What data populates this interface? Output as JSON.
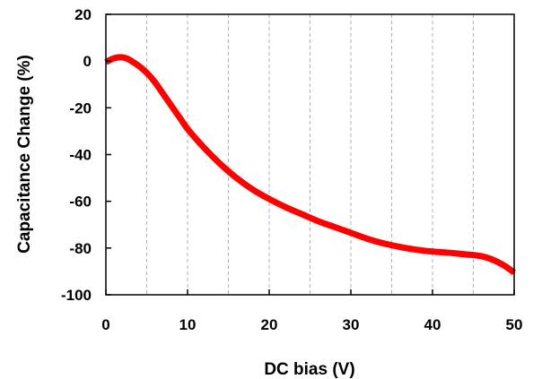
{
  "chart_data": {
    "type": "line",
    "xlabel": "DC bias (V)",
    "ylabel": "Capacitance Change (%)",
    "xlim": [
      0,
      50
    ],
    "ylim": [
      -100,
      20
    ],
    "x_ticks": [
      0,
      10,
      20,
      30,
      40,
      50
    ],
    "y_ticks": [
      20,
      0,
      -20,
      -40,
      -60,
      -80,
      -100
    ],
    "x_ticks_labels": [
      "0",
      "10",
      "20",
      "30",
      "40",
      "50"
    ],
    "y_ticks_labels": [
      "20",
      "0",
      "-20",
      "-40",
      "-60",
      "-80",
      "-100"
    ],
    "grid": "vertical dashed gridlines every 5 V",
    "series": [
      {
        "color": "#ff0000",
        "x": [
          0,
          0.5,
          1,
          1.5,
          2,
          2.5,
          3,
          4,
          5,
          6,
          7,
          8,
          9,
          10,
          12,
          14,
          16,
          18,
          20,
          22,
          24,
          26,
          28,
          30,
          32,
          34,
          36,
          38,
          40,
          42,
          44,
          45,
          46,
          47,
          48,
          49,
          50
        ],
        "y": [
          -0.5,
          0.5,
          1.2,
          1.6,
          1.6,
          1.2,
          0.3,
          -2,
          -5,
          -9,
          -14,
          -19,
          -24,
          -29,
          -37,
          -44,
          -50,
          -55,
          -59,
          -62.5,
          -65.5,
          -68.5,
          -71,
          -73.5,
          -76,
          -78,
          -79.5,
          -80.7,
          -81.5,
          -82,
          -82.7,
          -83,
          -83.5,
          -84.5,
          -86,
          -88,
          -90.5
        ]
      }
    ]
  }
}
